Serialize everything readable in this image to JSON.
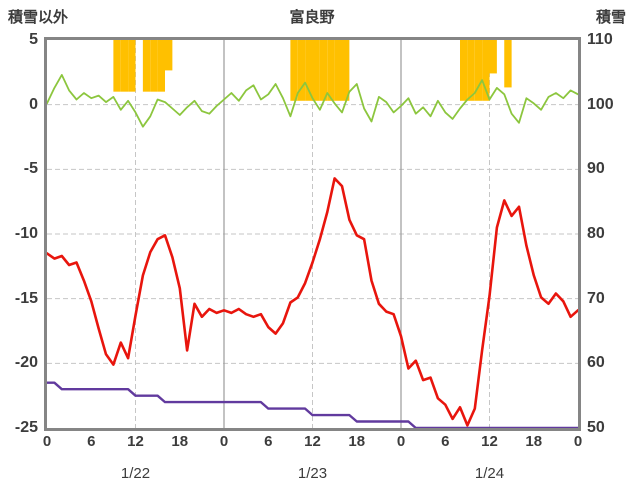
{
  "header": {
    "left_label": "積雪以外",
    "title": "富良野",
    "right_label": "積雪"
  },
  "colors": {
    "temperature": "#e8150d",
    "green_series": "#8cc63e",
    "snow_depth": "#613a9e",
    "sunshine": "#ffc000",
    "border": "#858585",
    "grid_dashed": "#c6c6c6",
    "grid_solid": "#9b9b9b",
    "text": "#3c3c3c"
  },
  "chart_data": {
    "type": "line",
    "title": "富良野",
    "x_hours_total": 72,
    "left_axis": {
      "label": "積雪以外",
      "ticks": [
        5,
        0,
        -5,
        -10,
        -15,
        -20,
        -25
      ],
      "min": -25,
      "max": 5
    },
    "right_axis": {
      "label": "積雪",
      "ticks": [
        110,
        100,
        90,
        80,
        70,
        60,
        50
      ],
      "min": 50,
      "max": 110
    },
    "x_axis": {
      "tick_hours": [
        0,
        6,
        12,
        18,
        24,
        30,
        36,
        42,
        48,
        54,
        60,
        66,
        72
      ],
      "tick_labels": [
        "0",
        "6",
        "12",
        "18",
        "0",
        "6",
        "12",
        "18",
        "0",
        "6",
        "12",
        "18",
        "0"
      ],
      "day_labels": [
        {
          "label": "1/22",
          "hour": 12
        },
        {
          "label": "1/23",
          "hour": 36
        },
        {
          "label": "1/24",
          "hour": 60
        }
      ]
    },
    "grid": {
      "h_dashed_values": [
        0,
        -5,
        -10,
        -15,
        -20
      ],
      "v_dashed_hours": [
        12,
        36,
        60
      ],
      "v_solid_hours": [
        24,
        48
      ]
    },
    "series": [
      {
        "name": "sunshine-bars",
        "type": "bar_from_top",
        "axis": "left",
        "color": "#ffc000",
        "full_height_units": 4.7,
        "values": [
          0,
          0,
          0,
          0,
          0,
          0,
          0,
          0,
          0,
          0.85,
          0.85,
          0.85,
          0,
          0.85,
          0.85,
          0.85,
          0.5,
          0,
          0,
          0,
          0,
          0,
          0,
          0,
          0,
          0,
          0,
          0,
          0,
          0,
          0,
          0,
          0,
          1,
          1,
          1,
          1,
          1,
          1,
          1,
          1,
          0,
          0,
          0,
          0,
          0,
          0,
          0,
          0,
          0,
          0,
          0,
          0,
          0,
          0,
          0,
          1,
          1,
          1,
          1,
          0.55,
          0,
          0.78,
          0,
          0,
          0,
          0,
          0,
          0,
          0,
          0,
          0,
          0
        ]
      },
      {
        "name": "green-series",
        "type": "line",
        "axis": "left",
        "color": "#8cc63e",
        "width": 1.8,
        "values": [
          0.1,
          1.3,
          2.3,
          1.1,
          0.4,
          0.9,
          0.5,
          0.7,
          0.2,
          0.6,
          -0.4,
          0.3,
          -0.6,
          -1.7,
          -0.9,
          0.4,
          0.2,
          -0.3,
          -0.8,
          -0.2,
          0.3,
          -0.5,
          -0.7,
          -0.1,
          0.4,
          0.9,
          0.3,
          1.1,
          1.5,
          0.4,
          0.8,
          1.6,
          0.5,
          -0.9,
          0.9,
          1.7,
          0.5,
          -0.4,
          0.9,
          0.1,
          -0.6,
          1.0,
          1.6,
          -0.3,
          -1.3,
          0.6,
          0.2,
          -0.6,
          -0.1,
          0.5,
          -0.7,
          -0.2,
          -0.9,
          0.3,
          -0.6,
          -1.1,
          -0.3,
          0.4,
          0.9,
          1.9,
          0.4,
          1.3,
          0.8,
          -0.7,
          -1.4,
          0.5,
          0.1,
          -0.4,
          0.6,
          0.9,
          0.5,
          1.1,
          0.8
        ]
      },
      {
        "name": "snow-depth",
        "type": "line",
        "axis": "right",
        "color": "#613a9e",
        "width": 2.4,
        "values": [
          57,
          57,
          56,
          56,
          56,
          56,
          56,
          56,
          56,
          56,
          56,
          56,
          55,
          55,
          55,
          55,
          54,
          54,
          54,
          54,
          54,
          54,
          54,
          54,
          54,
          54,
          54,
          54,
          54,
          54,
          53,
          53,
          53,
          53,
          53,
          53,
          52,
          52,
          52,
          52,
          52,
          52,
          51,
          51,
          51,
          51,
          51,
          51,
          51,
          51,
          50,
          50,
          50,
          50,
          50,
          50,
          50,
          50,
          50,
          50,
          50,
          50,
          50,
          50,
          50,
          50,
          50,
          50,
          50,
          50,
          50,
          50,
          50
        ]
      },
      {
        "name": "temperature",
        "type": "line",
        "axis": "left",
        "color": "#e8150d",
        "width": 2.6,
        "values": [
          -11.5,
          -11.9,
          -11.7,
          -12.4,
          -12.2,
          -13.6,
          -15.2,
          -17.3,
          -19.3,
          -20.1,
          -18.4,
          -19.6,
          -16.3,
          -13.2,
          -11.4,
          -10.4,
          -10.1,
          -11.8,
          -14.2,
          -19.0,
          -15.4,
          -16.4,
          -15.8,
          -16.1,
          -15.9,
          -16.1,
          -15.8,
          -16.2,
          -16.4,
          -16.2,
          -17.2,
          -17.7,
          -16.9,
          -15.3,
          -14.9,
          -13.8,
          -12.2,
          -10.4,
          -8.3,
          -5.7,
          -6.3,
          -8.9,
          -10.1,
          -10.4,
          -13.6,
          -15.4,
          -16.0,
          -16.2,
          -17.9,
          -20.4,
          -19.8,
          -21.3,
          -21.1,
          -22.7,
          -23.2,
          -24.3,
          -23.4,
          -24.8,
          -23.5,
          -19.0,
          -14.8,
          -9.5,
          -7.4,
          -8.6,
          -7.9,
          -10.9,
          -13.2,
          -14.9,
          -15.4,
          -14.6,
          -15.2,
          -16.4,
          -15.9
        ]
      }
    ]
  }
}
